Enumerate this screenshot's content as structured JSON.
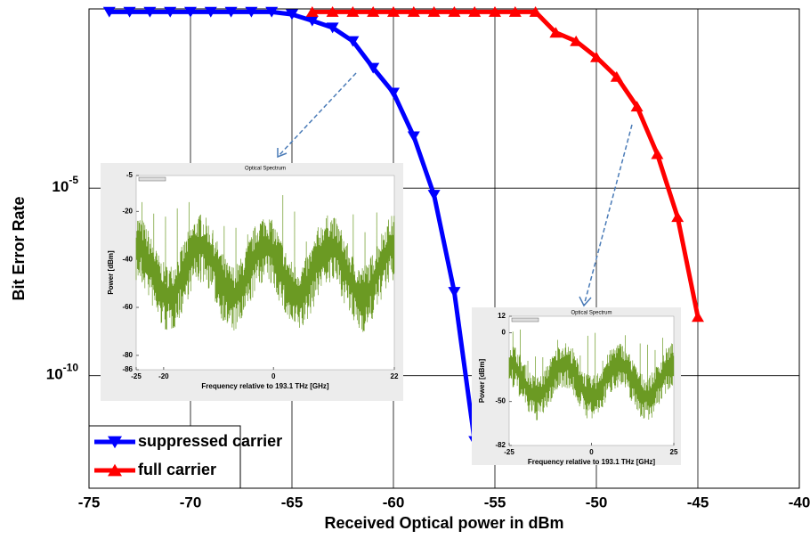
{
  "chart_data": {
    "type": "line",
    "x_label": "Received Optical power in dBm",
    "y_label": "Bit Error Rate",
    "log_y": true,
    "grid": true,
    "legend_position": "lower left",
    "xlim": [
      -75,
      -40
    ],
    "xticks": [
      -75,
      -70,
      -65,
      -60,
      -55,
      -50,
      -45,
      -40
    ],
    "ylim": [
      1e-13,
      0.6
    ],
    "yticks": [
      {
        "value": 1e-05,
        "label": "10^-5"
      },
      {
        "value": 1e-10,
        "label": "10^-10"
      }
    ],
    "series": [
      {
        "name": "suppressed carrier",
        "color": "#0000ff",
        "marker": "triangle-down",
        "x": [
          -74,
          -73,
          -72,
          -71,
          -70,
          -69,
          -68,
          -67,
          -66,
          -65,
          -64,
          -63,
          -62,
          -61,
          -60,
          -59,
          -58,
          -57,
          -56
        ],
        "values": [
          0.5,
          0.5,
          0.5,
          0.5,
          0.5,
          0.5,
          0.5,
          0.5,
          0.5,
          0.43,
          0.29,
          0.19,
          0.083,
          0.016,
          0.0035,
          0.00024,
          6.6e-06,
          1.7e-08,
          1.8e-12
        ]
      },
      {
        "name": "full carrier",
        "color": "#ff0000",
        "marker": "triangle-up",
        "x": [
          -64,
          -63,
          -62,
          -61,
          -60,
          -59,
          -58,
          -57,
          -56,
          -55,
          -54,
          -53,
          -52,
          -51,
          -50,
          -49,
          -48,
          -47,
          -46,
          -45
        ],
        "values": [
          0.5,
          0.5,
          0.5,
          0.5,
          0.5,
          0.5,
          0.5,
          0.5,
          0.5,
          0.5,
          0.5,
          0.5,
          0.14,
          0.083,
          0.031,
          0.0093,
          0.0015,
          8.1e-05,
          1.7e-06,
          3.7e-09
        ]
      }
    ],
    "insets": [
      {
        "title": "Optical Spectrum",
        "x_label": "Frequency relative to 193.1 THz [GHz]",
        "y_label": "Power [dBm]",
        "xlim": [
          -25,
          22
        ],
        "xticks": [
          -25,
          -20,
          0,
          22
        ],
        "ylim": [
          -86,
          -5
        ],
        "yticks": [
          -5,
          -20,
          -40,
          -60,
          -80,
          -86
        ]
      },
      {
        "title": "Optical Spectrum",
        "x_label": "Frequency relative to 193.1 THz [GHz]",
        "y_label": "Power [dBm]",
        "xlim": [
          -25,
          25
        ],
        "xticks": [
          -25,
          0,
          25
        ],
        "ylim": [
          -82,
          12
        ],
        "yticks": [
          12,
          0,
          -50,
          -82
        ]
      }
    ]
  }
}
